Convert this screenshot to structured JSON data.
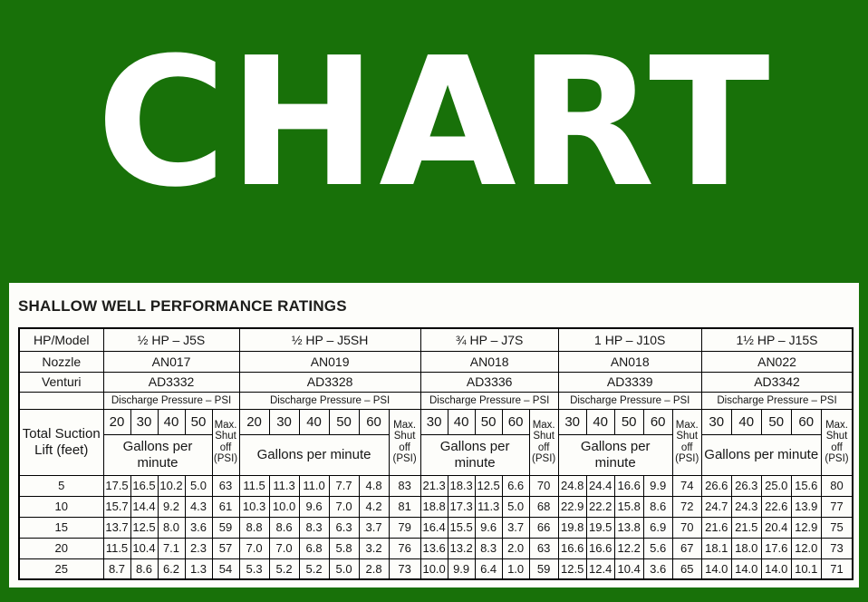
{
  "banner": {
    "text": "CHART"
  },
  "colors": {
    "background": "#187109",
    "banner_text": "#ffffff",
    "panel_background": "#fdfdfa",
    "table_border": "#000000",
    "table_text": "#161616"
  },
  "chart_data": {
    "type": "table",
    "title": "SHALLOW WELL PERFORMANCE RATINGS",
    "row_header": {
      "corner": "HP/Model",
      "nozzle": "Nozzle",
      "venturi": "Venturi"
    },
    "discharge_label": "Discharge Pressure – PSI",
    "suction_label": "Total Suction Lift (feet)",
    "gpm_label": "Gallons per minute",
    "shutoff_label": "Max. Shut off (PSI)",
    "lift_feet": [
      5,
      10,
      15,
      20,
      25
    ],
    "pumps": [
      {
        "model": "½ HP – J5S",
        "nozzle": "AN017",
        "venturi": "AD3332",
        "discharge_psi": [
          20,
          30,
          40,
          50
        ],
        "gpm_by_lift": [
          [
            17.5,
            16.5,
            10.2,
            5.0
          ],
          [
            15.7,
            14.4,
            9.2,
            4.3
          ],
          [
            13.7,
            12.5,
            8.0,
            3.6
          ],
          [
            11.5,
            10.4,
            7.1,
            2.3
          ],
          [
            8.7,
            8.6,
            6.2,
            1.3
          ]
        ],
        "max_shutoff_psi": [
          63,
          61,
          59,
          57,
          54
        ]
      },
      {
        "model": "½ HP – J5SH",
        "nozzle": "AN019",
        "venturi": "AD3328",
        "discharge_psi": [
          20,
          30,
          40,
          50,
          60
        ],
        "gpm_by_lift": [
          [
            11.5,
            11.3,
            11.0,
            7.7,
            4.8
          ],
          [
            10.3,
            10.0,
            9.6,
            7.0,
            4.2
          ],
          [
            8.8,
            8.6,
            8.3,
            6.3,
            3.7
          ],
          [
            7.0,
            7.0,
            6.8,
            5.8,
            3.2
          ],
          [
            5.3,
            5.2,
            5.2,
            5.0,
            2.8
          ]
        ],
        "max_shutoff_psi": [
          83,
          81,
          79,
          76,
          73
        ]
      },
      {
        "model": "¾ HP – J7S",
        "nozzle": "AN018",
        "venturi": "AD3336",
        "discharge_psi": [
          30,
          40,
          50,
          60
        ],
        "gpm_by_lift": [
          [
            21.3,
            18.3,
            12.5,
            6.6
          ],
          [
            18.8,
            17.3,
            11.3,
            5.0
          ],
          [
            16.4,
            15.5,
            9.6,
            3.7
          ],
          [
            13.6,
            13.2,
            8.3,
            2.0
          ],
          [
            10.0,
            9.9,
            6.4,
            1.0
          ]
        ],
        "max_shutoff_psi": [
          70,
          68,
          66,
          63,
          59
        ]
      },
      {
        "model": "1 HP – J10S",
        "nozzle": "AN018",
        "venturi": "AD3339",
        "discharge_psi": [
          30,
          40,
          50,
          60
        ],
        "gpm_by_lift": [
          [
            24.8,
            24.4,
            16.6,
            9.9
          ],
          [
            22.9,
            22.2,
            15.8,
            8.6
          ],
          [
            19.8,
            19.5,
            13.8,
            6.9
          ],
          [
            16.6,
            16.6,
            12.2,
            5.6
          ],
          [
            12.5,
            12.4,
            10.4,
            3.6
          ]
        ],
        "max_shutoff_psi": [
          74,
          72,
          70,
          67,
          65
        ]
      },
      {
        "model": "1½ HP – J15S",
        "nozzle": "AN022",
        "venturi": "AD3342",
        "discharge_psi": [
          30,
          40,
          50,
          60
        ],
        "gpm_by_lift": [
          [
            26.6,
            26.3,
            25.0,
            15.6
          ],
          [
            24.7,
            24.3,
            22.6,
            13.9
          ],
          [
            21.6,
            21.5,
            20.4,
            12.9
          ],
          [
            18.1,
            18.0,
            17.6,
            12.0
          ],
          [
            14.0,
            14.0,
            14.0,
            10.1
          ]
        ],
        "max_shutoff_psi": [
          80,
          77,
          75,
          73,
          71
        ]
      }
    ]
  }
}
